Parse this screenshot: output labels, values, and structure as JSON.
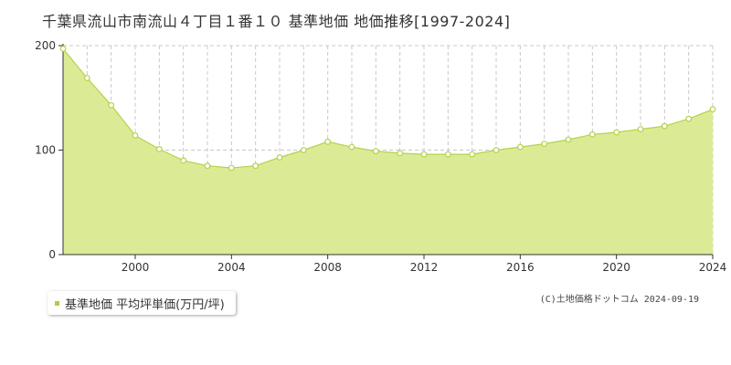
{
  "page": {
    "title": "千葉県流山市南流山４丁目１番１０ 基準地価 地価推移[1997-2024]"
  },
  "legend": {
    "label": "基準地価 平均坪単価(万円/坪)"
  },
  "credit": "(C)土地価格ドットコム 2024-09-19",
  "colors": {
    "fill": "#dbeb95",
    "line": "#b2d34a",
    "marker_fill": "#ffffff",
    "grid": "#c8c8c8",
    "axis": "#333333"
  },
  "chart_data": {
    "type": "area",
    "x": [
      1997,
      1998,
      1999,
      2000,
      2001,
      2002,
      2003,
      2004,
      2005,
      2006,
      2007,
      2008,
      2009,
      2010,
      2011,
      2012,
      2013,
      2014,
      2015,
      2016,
      2017,
      2018,
      2019,
      2020,
      2021,
      2022,
      2023,
      2024
    ],
    "series": [
      {
        "name": "基準地価 平均坪単価(万円/坪)",
        "values": [
          197,
          169,
          143,
          114,
          101,
          90,
          85,
          83,
          85,
          93,
          100,
          108,
          103,
          99,
          97,
          96,
          96,
          96,
          100,
          103,
          106,
          110,
          115,
          117,
          120,
          123,
          130,
          139
        ]
      }
    ],
    "xlim": [
      1997,
      2024
    ],
    "ylim": [
      0,
      200
    ],
    "x_ticks": [
      2000,
      2004,
      2008,
      2012,
      2016,
      2020,
      2024
    ],
    "y_ticks": [
      0,
      100,
      200
    ],
    "grid": true,
    "legend_position": "bottom-left"
  }
}
